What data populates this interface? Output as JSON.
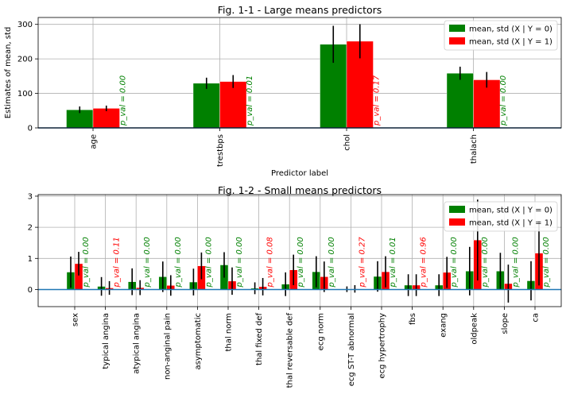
{
  "chart_data": [
    {
      "type": "bar",
      "title": "Fig. 1-1 - Large means predictors",
      "xlabel": "Predictor label",
      "ylabel": "Estimates of mean, std",
      "ylim": [
        0,
        320
      ],
      "yticks": [
        0,
        100,
        200,
        300
      ],
      "grid": true,
      "legend_position": "top-right",
      "categories": [
        "age",
        "trestbps",
        "chol",
        "thalach"
      ],
      "series": [
        {
          "name": "mean, std (X | Y = 0)",
          "color": "#008000",
          "values": [
            52.5,
            129.3,
            242.2,
            158.4
          ],
          "std": [
            9.6,
            16.2,
            53.6,
            19.0
          ]
        },
        {
          "name": "mean, std (X | Y = 1)",
          "color": "#ff0000",
          "values": [
            56.6,
            134.4,
            251.1,
            139.3
          ],
          "std": [
            8.0,
            18.7,
            49.5,
            22.7
          ]
        }
      ],
      "p_values": [
        "p_val = 0.00",
        "p_val = 0.01",
        "p_val = 0.17",
        "p_val = 0.00"
      ],
      "p_value_significant": [
        true,
        true,
        false,
        true
      ]
    },
    {
      "type": "bar",
      "title": "Fig. 1-2 - Small means predictors",
      "xlabel": "",
      "ylabel": "",
      "ylim": [
        -0.55,
        3.05
      ],
      "yticks": [
        0,
        1,
        2,
        3
      ],
      "grid": true,
      "legend_position": "top-right",
      "categories": [
        "sex",
        "typical angina",
        "atypical angina",
        "non-anginal pain",
        "asymptomatic",
        "thal norm",
        "thal fixed def",
        "thal reversable def",
        "ecg norm",
        "ecg ST-T abnormal",
        "ecg hypertrophy",
        "fbs",
        "exang",
        "oldpeak",
        "slope",
        "ca"
      ],
      "series": [
        {
          "name": "mean, std (X | Y = 0)",
          "color": "#008000",
          "values": [
            0.56,
            0.1,
            0.25,
            0.41,
            0.24,
            0.79,
            0.04,
            0.17,
            0.57,
            0.01,
            0.42,
            0.14,
            0.14,
            0.59,
            0.59,
            0.28
          ],
          "std": [
            0.5,
            0.3,
            0.43,
            0.49,
            0.43,
            0.41,
            0.19,
            0.38,
            0.5,
            0.09,
            0.49,
            0.35,
            0.35,
            0.78,
            0.59,
            0.63
          ]
        },
        {
          "name": "mean, std (X | Y = 1)",
          "color": "#ff0000",
          "values": [
            0.83,
            0.05,
            0.06,
            0.13,
            0.76,
            0.27,
            0.09,
            0.63,
            0.41,
            0.02,
            0.57,
            0.14,
            0.55,
            1.59,
            0.19,
            1.17
          ],
          "std": [
            0.38,
            0.22,
            0.24,
            0.33,
            0.43,
            0.44,
            0.28,
            0.49,
            0.49,
            0.12,
            0.5,
            0.35,
            0.5,
            1.3,
            0.61,
            1.04
          ]
        }
      ],
      "p_values": [
        "p_val = 0.00",
        "p_val = 0.11",
        "p_val = 0.00",
        "p_val = 0.00",
        "p_val = 0.00",
        "p_val = 0.00",
        "p_val = 0.08",
        "p_val = 0.00",
        "p_val = 0.00",
        "p_val = 0.27",
        "p_val = 0.01",
        "p_val = 0.96",
        "p_val = 0.00",
        "p_val = 0.00",
        "p_val = 0.00",
        "p_val = 0.00"
      ],
      "p_value_significant": [
        true,
        false,
        true,
        true,
        true,
        true,
        false,
        true,
        true,
        false,
        true,
        false,
        true,
        true,
        true,
        true
      ]
    }
  ]
}
